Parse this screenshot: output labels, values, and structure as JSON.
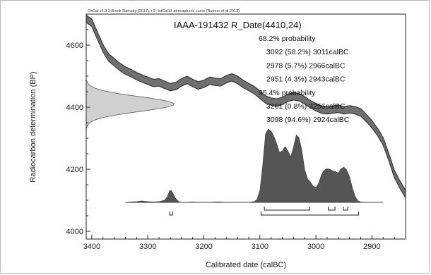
{
  "chart_data": {
    "type": "area",
    "credit": "OxCal v4.3.2 Bronk Ramsey (2017); r:5; IntCal13 atmospheric curve (Reimer et al 2013)",
    "title": "IAAA-191432 R_Date(4410,24)",
    "xlabel": "Calibrated date (calBC)",
    "ylabel": "Radiocarbon determination (BP)",
    "xlim": [
      3410,
      2840
    ],
    "ylim": [
      3975,
      4700
    ],
    "x_ticks": [
      "3400",
      "3300",
      "3200",
      "3100",
      "3000",
      "2900"
    ],
    "y_ticks": [
      "4000",
      "4200",
      "4400",
      "4600"
    ],
    "measurement": {
      "mean_bp": 4410,
      "sigma": 24
    },
    "calibration_curve": {
      "x": [
        3410,
        3400,
        3390,
        3380,
        3370,
        3360,
        3350,
        3340,
        3330,
        3320,
        3310,
        3300,
        3290,
        3280,
        3270,
        3260,
        3250,
        3240,
        3230,
        3220,
        3210,
        3200,
        3190,
        3180,
        3170,
        3160,
        3150,
        3140,
        3130,
        3120,
        3110,
        3100,
        3090,
        3080,
        3070,
        3060,
        3050,
        3040,
        3030,
        3020,
        3010,
        3000,
        2990,
        2980,
        2970,
        2960,
        2950,
        2940,
        2930,
        2920,
        2910,
        2900,
        2890,
        2880,
        2870,
        2860,
        2850,
        2840
      ],
      "y": [
        4685,
        4672,
        4630,
        4590,
        4560,
        4545,
        4530,
        4518,
        4510,
        4500,
        4492,
        4485,
        4478,
        4480,
        4472,
        4465,
        4468,
        4480,
        4488,
        4478,
        4470,
        4475,
        4485,
        4482,
        4480,
        4490,
        4496,
        4488,
        4475,
        4465,
        4455,
        4440,
        4425,
        4418,
        4415,
        4420,
        4430,
        4435,
        4432,
        4422,
        4410,
        4400,
        4392,
        4390,
        4392,
        4395,
        4390,
        4393,
        4390,
        4383,
        4365,
        4345,
        4320,
        4290,
        4240,
        4185,
        4150,
        4120
      ],
      "band_bp": 12
    },
    "probability_ranges": [
      {
        "label": "68.2% probability",
        "ranges": [
          {
            "text": "3092 (58.2%) 3011calBC",
            "from": 3092,
            "to": 3011
          },
          {
            "text": "2978 (5.7%) 2966calBC",
            "from": 2978,
            "to": 2966
          },
          {
            "text": "2951 (4.3%) 2943calBC",
            "from": 2951,
            "to": 2943
          }
        ]
      },
      {
        "label": "95.4% probability",
        "ranges": [
          {
            "text": "3261 (0.8%) 3256calBC",
            "from": 3261,
            "to": 3256
          },
          {
            "text": "3098 (94.6%) 2924calBC",
            "from": 3098,
            "to": 2924
          }
        ]
      }
    ],
    "posterior_distribution": {
      "x": [
        3340,
        3330,
        3320,
        3310,
        3300,
        3290,
        3280,
        3270,
        3265,
        3261,
        3258,
        3255,
        3250,
        3245,
        3240,
        3230,
        3220,
        3210,
        3200,
        3190,
        3180,
        3170,
        3160,
        3150,
        3140,
        3130,
        3120,
        3110,
        3105,
        3100,
        3095,
        3090,
        3085,
        3080,
        3075,
        3070,
        3065,
        3060,
        3055,
        3050,
        3045,
        3040,
        3035,
        3030,
        3025,
        3020,
        3015,
        3010,
        3005,
        3000,
        2995,
        2990,
        2985,
        2980,
        2975,
        2970,
        2965,
        2960,
        2955,
        2950,
        2945,
        2940,
        2935,
        2930,
        2925,
        2920,
        2915,
        2910
      ],
      "density": [
        0,
        0.005,
        0.01,
        0.02,
        0.01,
        0.005,
        0.01,
        0.03,
        0.08,
        0.16,
        0.16,
        0.12,
        0.05,
        0.01,
        0,
        0,
        0.005,
        0,
        0,
        0,
        0.005,
        0.005,
        0,
        0,
        0,
        0,
        0,
        0.01,
        0.04,
        0.16,
        0.5,
        0.93,
        1.0,
        0.97,
        0.9,
        0.8,
        0.68,
        0.7,
        0.76,
        0.7,
        0.62,
        0.75,
        0.92,
        0.88,
        0.7,
        0.45,
        0.32,
        0.28,
        0.22,
        0.2,
        0.26,
        0.38,
        0.44,
        0.46,
        0.45,
        0.43,
        0.42,
        0.4,
        0.46,
        0.48,
        0.44,
        0.35,
        0.2,
        0.08,
        0.02,
        0.005,
        0.002,
        0
      ],
      "baseline_range": [
        3340,
        2880
      ]
    },
    "grid": false,
    "legend": "none",
    "colors": {
      "curve_fill": "#707070",
      "curve_edge": "#303030",
      "posterior_fill": "#555555",
      "measurement_fill": "#d0d0d0"
    }
  }
}
